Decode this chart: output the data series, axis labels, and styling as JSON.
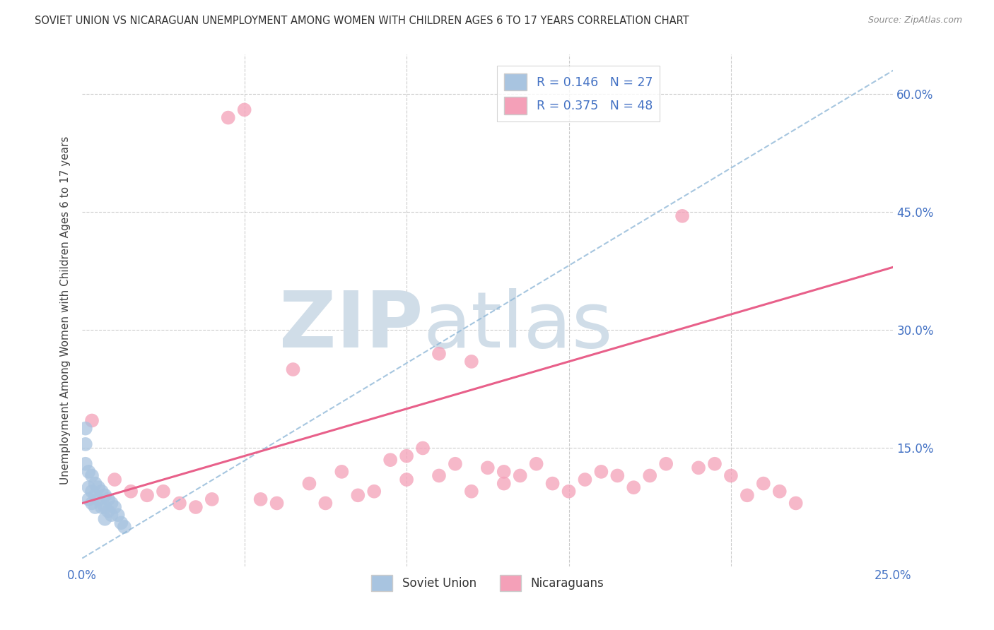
{
  "title": "SOVIET UNION VS NICARAGUAN UNEMPLOYMENT AMONG WOMEN WITH CHILDREN AGES 6 TO 17 YEARS CORRELATION CHART",
  "source": "Source: ZipAtlas.com",
  "ylabel": "Unemployment Among Women with Children Ages 6 to 17 years",
  "xlim": [
    0.0,
    0.25
  ],
  "ylim": [
    0.0,
    0.65
  ],
  "xticks": [
    0.0,
    0.05,
    0.1,
    0.15,
    0.2,
    0.25
  ],
  "xticklabels": [
    "0.0%",
    "",
    "",
    "",
    "",
    "25.0%"
  ],
  "yticks": [
    0.0,
    0.15,
    0.3,
    0.45,
    0.6
  ],
  "yticklabels_right": [
    "",
    "15.0%",
    "30.0%",
    "45.0%",
    "60.0%"
  ],
  "soviet_R": 0.146,
  "soviet_N": 27,
  "nicaraguan_R": 0.375,
  "nicaraguan_N": 48,
  "soviet_color": "#a8c4e0",
  "nicaraguan_color": "#f4a0b8",
  "soviet_trend_color": "#90b8d8",
  "nicaraguan_trend_color": "#e8608a",
  "background_color": "#ffffff",
  "grid_color": "#cccccc",
  "watermark_zip": "ZIP",
  "watermark_atlas": "atlas",
  "watermark_color": "#d0dde8",
  "soviet_x": [
    0.001,
    0.001,
    0.001,
    0.002,
    0.002,
    0.002,
    0.003,
    0.003,
    0.003,
    0.004,
    0.004,
    0.004,
    0.005,
    0.005,
    0.006,
    0.006,
    0.007,
    0.007,
    0.007,
    0.008,
    0.008,
    0.009,
    0.009,
    0.01,
    0.011,
    0.012,
    0.013
  ],
  "soviet_y": [
    0.175,
    0.155,
    0.13,
    0.12,
    0.1,
    0.085,
    0.115,
    0.095,
    0.08,
    0.105,
    0.09,
    0.075,
    0.1,
    0.085,
    0.095,
    0.075,
    0.09,
    0.075,
    0.06,
    0.085,
    0.07,
    0.08,
    0.065,
    0.075,
    0.065,
    0.055,
    0.05
  ],
  "nic_x": [
    0.003,
    0.01,
    0.015,
    0.02,
    0.025,
    0.03,
    0.035,
    0.04,
    0.045,
    0.05,
    0.055,
    0.06,
    0.065,
    0.07,
    0.075,
    0.08,
    0.085,
    0.09,
    0.095,
    0.1,
    0.1,
    0.105,
    0.11,
    0.11,
    0.115,
    0.12,
    0.12,
    0.125,
    0.13,
    0.13,
    0.135,
    0.14,
    0.145,
    0.15,
    0.155,
    0.16,
    0.165,
    0.17,
    0.175,
    0.18,
    0.185,
    0.19,
    0.195,
    0.2,
    0.205,
    0.21,
    0.215,
    0.22
  ],
  "nic_y": [
    0.185,
    0.11,
    0.095,
    0.09,
    0.095,
    0.08,
    0.075,
    0.085,
    0.57,
    0.58,
    0.085,
    0.08,
    0.25,
    0.105,
    0.08,
    0.12,
    0.09,
    0.095,
    0.135,
    0.11,
    0.14,
    0.15,
    0.115,
    0.27,
    0.13,
    0.095,
    0.26,
    0.125,
    0.105,
    0.12,
    0.115,
    0.13,
    0.105,
    0.095,
    0.11,
    0.12,
    0.115,
    0.1,
    0.115,
    0.13,
    0.445,
    0.125,
    0.13,
    0.115,
    0.09,
    0.105,
    0.095,
    0.08
  ],
  "sov_trend_x0": 0.0,
  "sov_trend_y0": 0.01,
  "sov_trend_x1": 0.25,
  "sov_trend_y1": 0.63,
  "nic_trend_x0": 0.0,
  "nic_trend_y0": 0.08,
  "nic_trend_x1": 0.25,
  "nic_trend_y1": 0.38
}
